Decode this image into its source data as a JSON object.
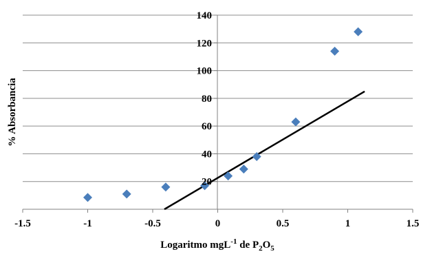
{
  "chart_data": {
    "type": "scatter",
    "xlabel": {
      "prefix": "Logaritmo mgL",
      "sup": "-1",
      "middle": " de P",
      "sub1": "2",
      "middle2": "O",
      "sub2": "5"
    },
    "ylabel": "% Absorbancia",
    "xlim": [
      -1.5,
      1.5
    ],
    "ylim": [
      0,
      140
    ],
    "x_ticks": [
      -1.5,
      -1,
      -0.5,
      0,
      0.5,
      1,
      1.5
    ],
    "x_tick_labels": [
      "-1.5",
      "-1",
      "-0.5",
      "0",
      "0.5",
      "1",
      "1.5"
    ],
    "y_ticks": [
      20,
      40,
      60,
      80,
      100,
      120,
      140
    ],
    "y_tick_labels": [
      "20",
      "40",
      "60",
      "80",
      "100",
      "120",
      "140"
    ],
    "grid": "horizontal",
    "series": [
      {
        "marker": "diamond",
        "color": "#4a7ebb",
        "x": [
          -1.0,
          -0.7,
          -0.4,
          -0.1,
          0.08,
          0.2,
          0.3,
          0.6,
          0.9,
          1.08
        ],
        "y": [
          8.5,
          11,
          16,
          17,
          24,
          29,
          38,
          63,
          114,
          128
        ]
      }
    ],
    "trendline": {
      "type": "linear",
      "color": "#000000",
      "x": [
        -0.41,
        1.13
      ],
      "y": [
        0,
        85
      ]
    }
  }
}
